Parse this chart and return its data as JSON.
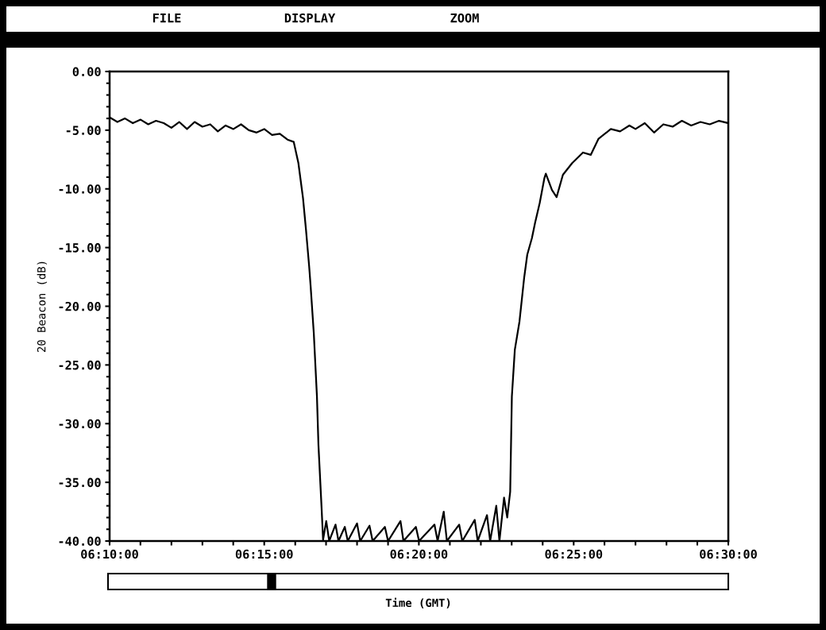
{
  "chart_data": {
    "type": "line",
    "xlabel": "Time (GMT)",
    "ylabel": "20 Beacon (dB)",
    "annotations": [
      "FILE",
      "DISPLAY",
      "ZOOM"
    ],
    "x": [
      6.1667,
      6.1709,
      6.175,
      6.1792,
      6.1834,
      6.1875,
      6.1917,
      6.1959,
      6.2,
      6.2042,
      6.2084,
      6.2125,
      6.2167,
      6.2209,
      6.225,
      6.2292,
      6.2334,
      6.2375,
      6.2417,
      6.2459,
      6.25,
      6.2542,
      6.2584,
      6.2625,
      6.2659,
      6.2684,
      6.2709,
      6.2725,
      6.2742,
      6.275,
      6.2767,
      6.2784,
      6.2792,
      6.2809,
      6.2817,
      6.2834,
      6.285,
      6.2884,
      6.29,
      6.2934,
      6.295,
      6.3,
      6.3017,
      6.3067,
      6.3084,
      6.315,
      6.3167,
      6.3234,
      6.325,
      6.3317,
      6.3334,
      6.3417,
      6.3434,
      6.3467,
      6.3484,
      6.355,
      6.3567,
      6.3634,
      6.365,
      6.37,
      6.3717,
      6.375,
      6.3767,
      6.3792,
      6.3809,
      6.3825,
      6.3834,
      6.385,
      6.3875,
      6.39,
      6.3917,
      6.3942,
      6.3959,
      6.3984,
      6.4009,
      6.4017,
      6.405,
      6.4075,
      6.4109,
      6.4159,
      6.4217,
      6.4259,
      6.43,
      6.4367,
      6.4417,
      6.4467,
      6.45,
      6.455,
      6.46,
      6.465,
      6.47,
      6.475,
      6.48,
      6.485,
      6.49,
      6.495,
      6.5
    ],
    "series": [
      {
        "color": "#000000",
        "values": [
          -3.9,
          -4.3,
          -4.0,
          -4.4,
          -4.1,
          -4.5,
          -4.2,
          -4.4,
          -4.8,
          -4.3,
          -4.9,
          -4.3,
          -4.7,
          -4.5,
          -5.1,
          -4.6,
          -4.9,
          -4.5,
          -5.0,
          -5.2,
          -4.9,
          -5.4,
          -5.3,
          -5.8,
          -6.0,
          -7.8,
          -10.8,
          -13.5,
          -16.6,
          -18.3,
          -22.3,
          -27.7,
          -31.8,
          -37.2,
          -39.9,
          -38.3,
          -40,
          -38.6,
          -40,
          -38.8,
          -40,
          -38.5,
          -40,
          -38.7,
          -40,
          -38.8,
          -40,
          -38.3,
          -40,
          -38.8,
          -40,
          -38.6,
          -40,
          -37.5,
          -40,
          -38.6,
          -40,
          -38.2,
          -40,
          -37.8,
          -40,
          -37.0,
          -40,
          -36.3,
          -38.0,
          -35.8,
          -27.7,
          -23.7,
          -21.3,
          -17.6,
          -15.6,
          -14.2,
          -12.9,
          -11.2,
          -9.1,
          -8.7,
          -10.1,
          -10.7,
          -8.8,
          -7.8,
          -6.9,
          -7.1,
          -5.75,
          -4.9,
          -5.1,
          -4.6,
          -4.9,
          -4.4,
          -5.2,
          -4.5,
          -4.7,
          -4.2,
          -4.6,
          -4.3,
          -4.5,
          -4.2,
          -4.4
        ]
      }
    ],
    "xlim": [
      6.1667,
      6.5
    ],
    "ylim": [
      -40,
      0
    ],
    "xticks": [
      {
        "value": 6.1667,
        "label": "06:10:00"
      },
      {
        "value": 6.1833,
        "label": null
      },
      {
        "value": 6.2,
        "label": null
      },
      {
        "value": 6.2167,
        "label": null
      },
      {
        "value": 6.2333,
        "label": null
      },
      {
        "value": 6.25,
        "label": "06:15:00"
      },
      {
        "value": 6.2667,
        "label": null
      },
      {
        "value": 6.2833,
        "label": null
      },
      {
        "value": 6.3,
        "label": null
      },
      {
        "value": 6.3167,
        "label": null
      },
      {
        "value": 6.3333,
        "label": "06:20:00"
      },
      {
        "value": 6.35,
        "label": null
      },
      {
        "value": 6.3667,
        "label": null
      },
      {
        "value": 6.3833,
        "label": null
      },
      {
        "value": 6.4,
        "label": null
      },
      {
        "value": 6.4167,
        "label": "06:25:00"
      },
      {
        "value": 6.4333,
        "label": null
      },
      {
        "value": 6.45,
        "label": null
      },
      {
        "value": 6.4667,
        "label": null
      },
      {
        "value": 6.4833,
        "label": null
      },
      {
        "value": 6.5,
        "label": "06:30:00"
      }
    ],
    "yticks": [
      {
        "value": 0,
        "label": "0.00"
      },
      {
        "value": -5,
        "label": "-5.00"
      },
      {
        "value": -10,
        "label": "-10.00"
      },
      {
        "value": -15,
        "label": "-15.00"
      },
      {
        "value": -20,
        "label": "-20.00"
      },
      {
        "value": -25,
        "label": "-25.00"
      },
      {
        "value": -30,
        "label": "-30.00"
      },
      {
        "value": -35,
        "label": "-35.00"
      },
      {
        "value": -40,
        "label": "-40.00"
      }
    ],
    "grid": false,
    "marker": "none",
    "line_style": "solid"
  }
}
